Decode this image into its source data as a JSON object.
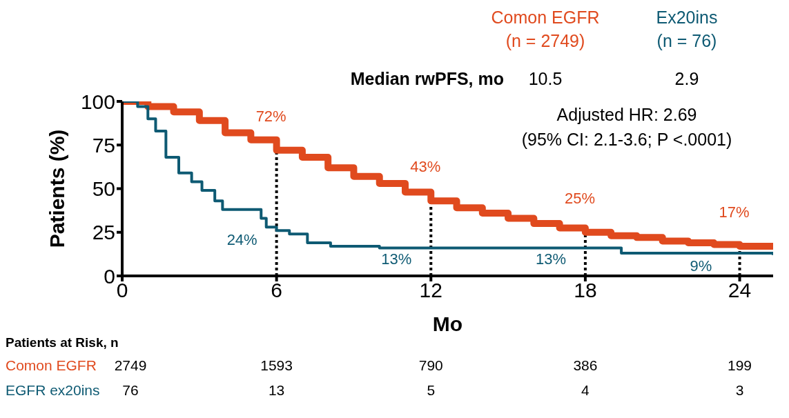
{
  "chart_data": {
    "type": "step",
    "xlabel": "Mo",
    "ylabel": "Patients (%)",
    "xlim": [
      0,
      25.3
    ],
    "ylim": [
      0,
      100
    ],
    "xticks": [
      0,
      6,
      12,
      18,
      24
    ],
    "yticks": [
      0,
      25,
      50,
      75,
      100
    ],
    "legend": "top right",
    "line_style": "solid",
    "series": [
      {
        "name": "Comon EGFR (n = 2749)",
        "color": "#e04a1e",
        "x": [
          0,
          1,
          2,
          3,
          4,
          5,
          6,
          7,
          8,
          9,
          10,
          11,
          12,
          13,
          14,
          15,
          16,
          17,
          18,
          19,
          20,
          21,
          22,
          23,
          24,
          25.3
        ],
        "values": [
          100,
          97,
          94,
          89,
          82,
          78,
          72,
          68,
          62,
          57,
          53,
          48,
          43,
          39,
          36,
          33,
          30,
          27.5,
          25,
          23,
          22,
          20,
          19,
          18,
          17,
          17
        ]
      },
      {
        "name": "Ex20ins (n = 76)",
        "color": "#0e5a73",
        "x": [
          0,
          0.6,
          1,
          1.3,
          1.7,
          2.2,
          2.7,
          3.1,
          3.6,
          3.9,
          4.9,
          5.4,
          5.6,
          6,
          6.5,
          7.2,
          8.1,
          10,
          19.4,
          25.3
        ],
        "values": [
          100,
          97,
          90,
          83,
          68,
          59,
          54,
          49,
          43,
          38,
          38,
          33,
          28,
          26,
          24,
          19,
          17,
          16,
          13,
          12
        ]
      }
    ],
    "ref_lines": [
      {
        "axis": "x",
        "value": 6,
        "line_style": "dotted",
        "color": "#000000"
      },
      {
        "axis": "x",
        "value": 12,
        "line_style": "dotted",
        "color": "#000000"
      },
      {
        "axis": "x",
        "value": 18,
        "line_style": "dotted",
        "color": "#000000"
      },
      {
        "axis": "x",
        "value": 24,
        "line_style": "dotted",
        "color": "#000000"
      }
    ],
    "annotations": [
      "Median rwPFS, mo",
      "10.5",
      "2.9",
      "Adjusted HR: 2.69",
      "(95% CI: 2.1-3.6; P <.0001)",
      "Patients at Risk, n",
      "Comon EGFR",
      "2749",
      "1593",
      "790",
      "386",
      "199",
      "EGFR ex20ins",
      "76",
      "13",
      "5",
      "4",
      "3",
      {
        "text": "72%",
        "x": 6,
        "y": 72
      },
      {
        "text": "43%",
        "x": 12,
        "y": 43
      },
      {
        "text": "25%",
        "x": 18,
        "y": 25
      },
      {
        "text": "17%",
        "x": 24,
        "y": 17
      },
      {
        "text": "24%",
        "x": 6,
        "y": 24
      },
      {
        "text": "13%",
        "x": 12,
        "y": 13
      },
      {
        "text": "13%",
        "x": 18,
        "y": 13
      },
      {
        "text": "9%",
        "x": 24,
        "y": 9
      }
    ]
  }
}
